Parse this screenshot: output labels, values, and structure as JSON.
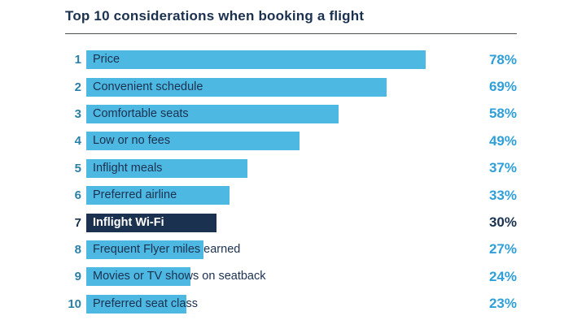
{
  "title": "Top 10 considerations when booking a flight",
  "colors": {
    "title": "#1b3150",
    "bar": "#4db8e2",
    "bar_highlight": "#1b3150",
    "label": "#1b3150",
    "label_highlight": "#ffffff",
    "rank": "#2a80a8",
    "percent": "#2e9fd9",
    "percent_highlight": "#1b3150"
  },
  "chart_data": {
    "type": "bar",
    "orientation": "horizontal",
    "title": "Top 10 considerations when booking a flight",
    "value_unit": "%",
    "value_range": [
      0,
      78
    ],
    "grid": false,
    "legend": false,
    "categories": [
      "Price",
      "Convenient schedule",
      "Comfortable seats",
      "Low or no fees",
      "Inflight meals",
      "Preferred airline",
      "Inflight Wi-Fi",
      "Frequent Flyer miles earned",
      "Movies or TV shows on seatback",
      "Preferred seat class"
    ],
    "values": [
      78,
      69,
      58,
      49,
      37,
      33,
      30,
      27,
      24,
      23
    ],
    "rows": [
      {
        "rank": "1",
        "label": "Price",
        "value": 78,
        "display": "78%",
        "highlight": false
      },
      {
        "rank": "2",
        "label": "Convenient schedule",
        "value": 69,
        "display": "69%",
        "highlight": false
      },
      {
        "rank": "3",
        "label": "Comfortable seats",
        "value": 58,
        "display": "58%",
        "highlight": false
      },
      {
        "rank": "4",
        "label": "Low or no fees",
        "value": 49,
        "display": "49%",
        "highlight": false
      },
      {
        "rank": "5",
        "label": "Inflight meals",
        "value": 37,
        "display": "37%",
        "highlight": false
      },
      {
        "rank": "6",
        "label": "Preferred airline",
        "value": 33,
        "display": "33%",
        "highlight": false
      },
      {
        "rank": "7",
        "label": "Inflight Wi-Fi",
        "value": 30,
        "display": "30%",
        "highlight": true
      },
      {
        "rank": "8",
        "label": "Frequent Flyer miles earned",
        "value": 27,
        "display": "27%",
        "highlight": false
      },
      {
        "rank": "9",
        "label": "Movies or TV shows on seatback",
        "value": 24,
        "display": "24%",
        "highlight": false
      },
      {
        "rank": "10",
        "label": "Preferred seat class",
        "value": 23,
        "display": "23%",
        "highlight": false
      }
    ]
  }
}
